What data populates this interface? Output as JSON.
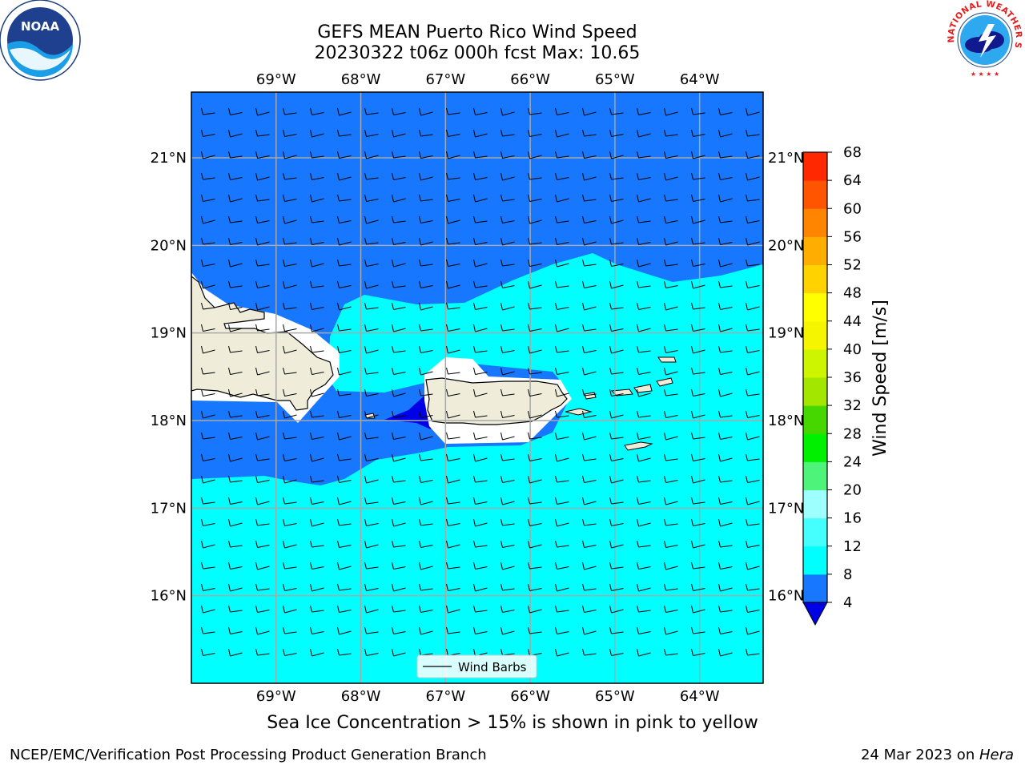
{
  "title": {
    "line1": "GEFS MEAN Puerto Rico Wind Speed",
    "line2": "20230322 t06z 000h fcst   Max: 10.65"
  },
  "map": {
    "lon_labels": [
      "69°W",
      "68°W",
      "67°W",
      "66°W",
      "65°W",
      "64°W"
    ],
    "lon_values": [
      -69,
      -68,
      -67,
      -66,
      -65,
      -64
    ],
    "lat_labels": [
      "21°N",
      "20°N",
      "19°N",
      "18°N",
      "17°N",
      "16°N"
    ],
    "lat_values": [
      21,
      20,
      19,
      18,
      17,
      16
    ],
    "extent": {
      "lon_min": -70.0,
      "lon_max": -63.25,
      "lat_min": 15.0,
      "lat_max": 21.75
    },
    "grid": true,
    "legend": {
      "label": "Wind Barbs",
      "placement": "bottom-center"
    },
    "colors": {
      "land": "#efedda",
      "ocean_4_8": "#1777ff",
      "ocean_8_12": "#00ffff",
      "ocean_lt4": "#0000e6",
      "no_data": "#ffffff",
      "gridline": "#a8a8a8"
    }
  },
  "colorbar": {
    "label": "Wind Speed [m/s]",
    "ticks": [
      "68",
      "64",
      "60",
      "56",
      "52",
      "48",
      "44",
      "40",
      "36",
      "32",
      "28",
      "24",
      "20",
      "16",
      "12",
      "8",
      "4"
    ],
    "levels": [
      4,
      8,
      12,
      16,
      20,
      24,
      28,
      32,
      36,
      40,
      44,
      48,
      52,
      56,
      60,
      64,
      68
    ],
    "colors": [
      "#1777ff",
      "#00ffff",
      "#45ffff",
      "#9effff",
      "#4ef47a",
      "#00f000",
      "#46d600",
      "#a3e600",
      "#cef500",
      "#f5f500",
      "#ffff00",
      "#ffd200",
      "#ffae00",
      "#ff8400",
      "#ff5400",
      "#ff2800"
    ],
    "extend_low_color": "#0000e6"
  },
  "subtitle": "Sea Ice Concentration > 15% is shown in pink to yellow",
  "footer": {
    "left": "NCEP/EMC/Verification Post Processing Product Generation Branch",
    "right_date": "24 Mar 2023 on ",
    "right_host": "Hera"
  },
  "logos": {
    "noaa": "NOAA",
    "nws": "NATIONAL WEATHER SERVICE"
  }
}
